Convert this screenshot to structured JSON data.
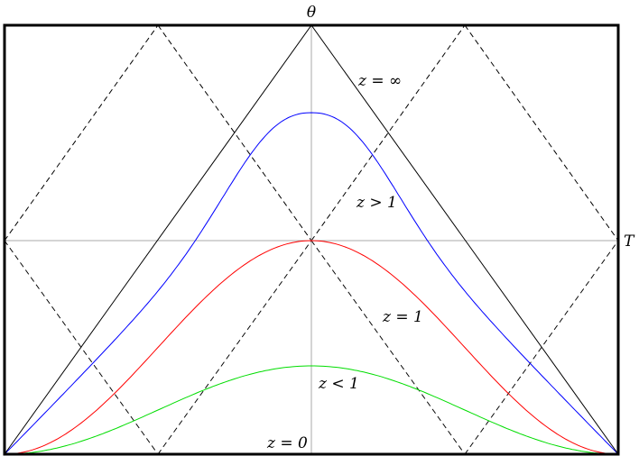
{
  "axes": {
    "vertical_label": "θ",
    "horizontal_label": "T"
  },
  "curves": [
    {
      "label": "z = ∞",
      "color": "#000000",
      "kind": "light-cone boundary"
    },
    {
      "label": "z > 1",
      "color": "#0000ff",
      "kind": "bump"
    },
    {
      "label": "z = 1",
      "color": "#ff0000",
      "kind": "bump"
    },
    {
      "label": "z < 1",
      "color": "#00dd00",
      "kind": "bump"
    },
    {
      "label": "z = 0",
      "color": "#000000",
      "kind": "baseline"
    }
  ],
  "colors": {
    "frame": "#000000",
    "axes": "#aaaaaa",
    "dashed": "#000000"
  }
}
